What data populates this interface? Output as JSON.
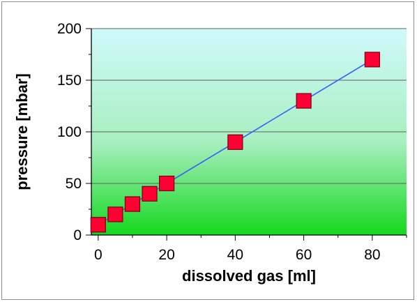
{
  "chart_data": {
    "type": "scatter",
    "title": "",
    "xlabel": "dissolved gas [ml]",
    "ylabel": "pressure [mbar]",
    "xlim": [
      -2,
      90
    ],
    "ylim": [
      0,
      200
    ],
    "x_ticks": [
      0,
      20,
      40,
      60,
      80
    ],
    "x_tick_labels": [
      "0",
      "20",
      "40",
      "60",
      "80"
    ],
    "y_ticks": [
      0,
      50,
      100,
      150,
      200
    ],
    "y_tick_labels": [
      "0",
      "50",
      "100",
      "150",
      "200"
    ],
    "grid": "horizontal major gridlines",
    "legend": "none",
    "background": "vertical gradient, green at bottom to light cyan at top",
    "series": [
      {
        "x": [
          0,
          5,
          10,
          15,
          20,
          40,
          60,
          80
        ],
        "y": [
          10,
          20,
          30,
          40,
          50,
          90,
          130,
          170
        ],
        "marker": "square",
        "marker_color": "#ff0033",
        "line_color": "#3b5bff",
        "line": "connected"
      }
    ]
  }
}
